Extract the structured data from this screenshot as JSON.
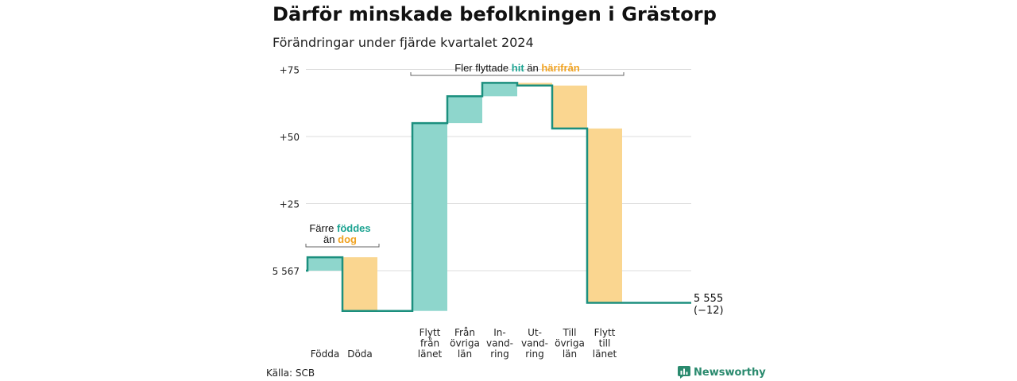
{
  "title": "Därför minskade befolkningen i Grästorp",
  "subtitle": "Förändringar under fjärde kvartalet 2024",
  "source": "Källa: SCB",
  "brand": "Newsworthy",
  "colors": {
    "line": "#1b8f7e",
    "increase": "#8ed6cc",
    "decrease": "#fad690",
    "accent_teal": "#1ba391",
    "accent_orange": "#f0a220",
    "grid": "#dddddd"
  },
  "annotations": {
    "births": {
      "part1": "Färre ",
      "highlight1": "föddes",
      "part2": "än ",
      "highlight2": "dog"
    },
    "moves": {
      "part1": "Fler flyttade ",
      "highlight1": "hit",
      "part2": " än ",
      "highlight2": "härifrån"
    }
  },
  "chart_data": {
    "type": "waterfall",
    "start_label": "5 567",
    "end_label": "5 555",
    "end_change_label": "(−12)",
    "y_ticks": [
      {
        "label": "5 567",
        "offset": 0
      },
      {
        "label": "+25",
        "offset": 25
      },
      {
        "label": "+50",
        "offset": 50
      },
      {
        "label": "+75",
        "offset": 75
      }
    ],
    "ylim": [
      -15,
      77
    ],
    "steps": [
      {
        "label": [
          "Födda"
        ],
        "value": 5
      },
      {
        "label": [
          "Döda"
        ],
        "value": -20
      },
      {
        "label": [
          "Flytt",
          "från",
          "länet"
        ],
        "value": 70
      },
      {
        "label": [
          "Från",
          "övriga",
          "län"
        ],
        "value": 10
      },
      {
        "label": [
          "In-",
          "vand-",
          "ring"
        ],
        "value": 5
      },
      {
        "label": [
          "Ut-",
          "vand-",
          "ring"
        ],
        "value": -1
      },
      {
        "label": [
          "Till",
          "övriga",
          "län"
        ],
        "value": -16
      },
      {
        "label": [
          "Flytt",
          "till",
          "länet"
        ],
        "value": -65
      }
    ]
  }
}
